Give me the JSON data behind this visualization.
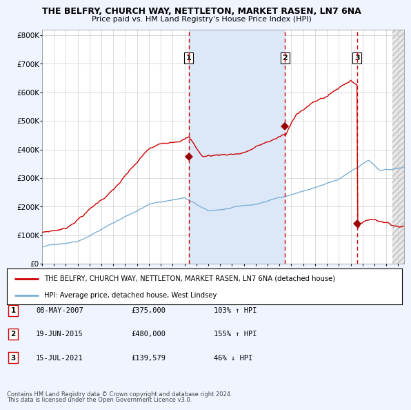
{
  "title1": "THE BELFRY, CHURCH WAY, NETTLETON, MARKET RASEN, LN7 6NA",
  "title2": "Price paid vs. HM Land Registry's House Price Index (HPI)",
  "background_color": "#f0f4ff",
  "plot_bg_color": "#ffffff",
  "shaded_region_color": "#dce8f8",
  "grid_color": "#cccccc",
  "red_line_color": "#cc0000",
  "blue_line_color": "#7bafd4",
  "sale_marker_color": "#990000",
  "dashed_line_color": "#cc0000",
  "hatch_color": "#d0d0d0",
  "sales": [
    {
      "label": "1",
      "date_num": 2007.36,
      "price": 375000,
      "date_str": "08-MAY-2007",
      "pct": "103%",
      "dir": "↑"
    },
    {
      "label": "2",
      "date_num": 2015.46,
      "price": 480000,
      "date_str": "19-JUN-2015",
      "pct": "155%",
      "dir": "↑"
    },
    {
      "label": "3",
      "date_num": 2021.53,
      "price": 139579,
      "date_str": "15-JUL-2021",
      "pct": "46%",
      "dir": "↓"
    }
  ],
  "legend_line1": "THE BELFRY, CHURCH WAY, NETTLETON, MARKET RASEN, LN7 6NA (detached house)",
  "legend_line2": "HPI: Average price, detached house, West Lindsey",
  "footer1": "Contains HM Land Registry data © Crown copyright and database right 2024.",
  "footer2": "This data is licensed under the Open Government Licence v3.0.",
  "xmin": 1995.0,
  "xmax": 2025.5,
  "ymin": 0,
  "ymax": 820000,
  "yticks": [
    0,
    100000,
    200000,
    300000,
    400000,
    500000,
    600000,
    700000,
    800000
  ],
  "ytick_labels": [
    "£0",
    "£100K",
    "£200K",
    "£300K",
    "£400K",
    "£500K",
    "£600K",
    "£700K",
    "£800K"
  ],
  "xticks": [
    1995,
    1996,
    1997,
    1998,
    1999,
    2000,
    2001,
    2002,
    2003,
    2004,
    2005,
    2006,
    2007,
    2008,
    2009,
    2010,
    2011,
    2012,
    2013,
    2014,
    2015,
    2016,
    2017,
    2018,
    2019,
    2020,
    2021,
    2022,
    2023,
    2024,
    2025
  ]
}
